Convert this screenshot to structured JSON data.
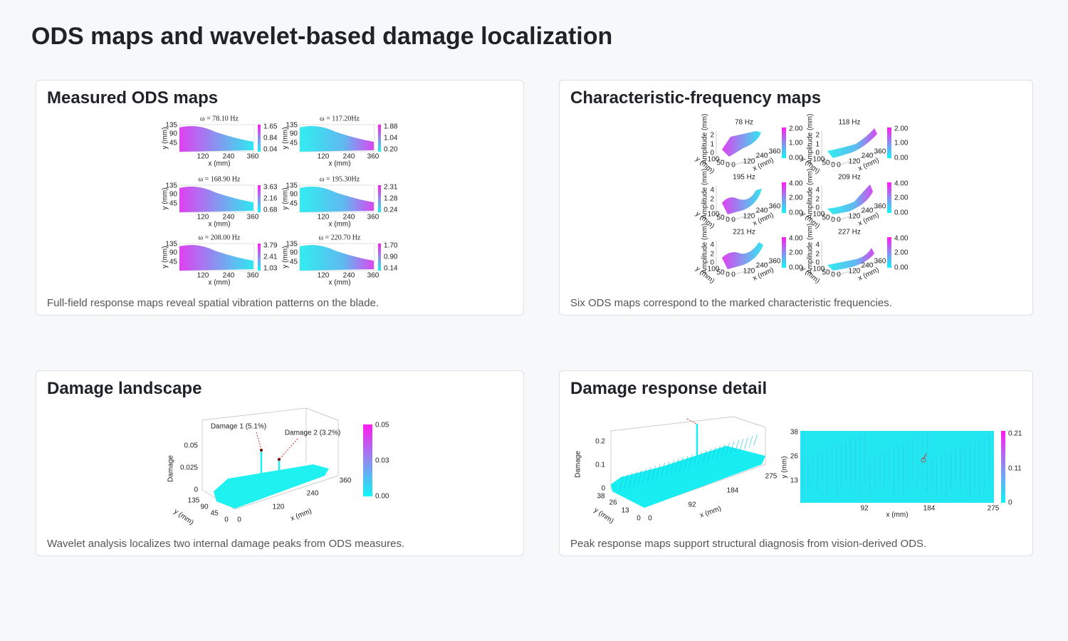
{
  "title": "ODS maps and wavelet-based damage localization",
  "panels": [
    {
      "title": "Measured ODS maps",
      "caption": "Full-field response maps reveal spatial vibration patterns on the blade.",
      "figure": {
        "x_label": "x (mm)",
        "y_label": "y (mm)",
        "x_ticks": [
          "120",
          "240",
          "360"
        ],
        "y_ticks": [
          "135",
          "90",
          "45"
        ],
        "plots": [
          {
            "title": "ω = 78.10 Hz",
            "colorbar": [
              "1.65",
              "0.84",
              "0.04"
            ]
          },
          {
            "title": "ω = 117.20Hz",
            "colorbar": [
              "1.88",
              "1.04",
              "0.20"
            ]
          },
          {
            "title": "ω = 168.90 Hz",
            "colorbar": [
              "3.63",
              "2.16",
              "0.68"
            ]
          },
          {
            "title": "ω = 195.30Hz",
            "colorbar": [
              "2.31",
              "1.28",
              "0.24"
            ]
          },
          {
            "title": "ω = 208.00 Hz",
            "colorbar": [
              "3.79",
              "2.41",
              "1.03"
            ]
          },
          {
            "title": "ω = 220.70 Hz",
            "colorbar": [
              "1.70",
              "0.90",
              "0.14"
            ]
          }
        ]
      }
    },
    {
      "title": "Characteristic-frequency maps",
      "caption": "Six ODS maps correspond to the marked characteristic frequencies.",
      "figure": {
        "z_label": "Amplitude (mm)",
        "x_label": "x (mm)",
        "y_label": "y (mm)",
        "x_ticks": [
          "0",
          "120",
          "240",
          "360"
        ],
        "y_ticks": [
          "100",
          "50",
          "0"
        ],
        "plots": [
          {
            "title": "78 Hz",
            "z_ticks": [
              "2",
              "1",
              "0"
            ],
            "colorbar": [
              "2.00",
              "1.00",
              "0.00"
            ]
          },
          {
            "title": "118 Hz",
            "z_ticks": [
              "2",
              "1",
              "0"
            ],
            "colorbar": [
              "2.00",
              "1.00",
              "0.00"
            ]
          },
          {
            "title": "195 Hz",
            "z_ticks": [
              "4",
              "2",
              "0"
            ],
            "colorbar": [
              "4.00",
              "2.00",
              "0.00"
            ]
          },
          {
            "title": "209 Hz",
            "z_ticks": [
              "4",
              "2",
              "0"
            ],
            "colorbar": [
              "4.00",
              "2.00",
              "0.00"
            ]
          },
          {
            "title": "221 Hz",
            "z_ticks": [
              "4",
              "2",
              "0"
            ],
            "colorbar": [
              "4.00",
              "2.00",
              "0.00"
            ]
          },
          {
            "title": "227 Hz",
            "z_ticks": [
              "4",
              "2",
              "0"
            ],
            "colorbar": [
              "4.00",
              "2.00",
              "0.00"
            ]
          }
        ]
      }
    },
    {
      "title": "Damage landscape",
      "caption": "Wavelet analysis localizes two internal damage peaks from ODS measures.",
      "figure": {
        "annotations": [
          "Damage 1 (5.1%)",
          "Damage 2 (3.2%)"
        ],
        "z_label": "Damage",
        "z_ticks": [
          "0.05",
          "0.025",
          "0"
        ],
        "y_label": "y (mm)",
        "y_ticks": [
          "135",
          "90",
          "45",
          "0"
        ],
        "x_label": "x (mm)",
        "x_ticks": [
          "0",
          "120",
          "240",
          "360"
        ],
        "colorbar": [
          "0.05",
          "0.03",
          "0.00"
        ]
      }
    },
    {
      "title": "Damage response detail",
      "caption": "Peak response maps support structural diagnosis from vision-derived ODS.",
      "figure": {
        "surface": {
          "z_label": "Damage",
          "z_ticks": [
            "0.2",
            "0.1",
            "0"
          ],
          "y_label": "y (mm)",
          "y_ticks": [
            "38",
            "26",
            "13",
            "0"
          ],
          "x_label": "x (mm)",
          "x_ticks": [
            "0",
            "92",
            "184",
            "275"
          ]
        },
        "map": {
          "y_label": "y (mm)",
          "y_ticks": [
            "38",
            "26",
            "13"
          ],
          "x_label": "x (mm)",
          "x_ticks": [
            "92",
            "184",
            "275"
          ],
          "colorbar": [
            "0.21",
            "0.11",
            "0"
          ]
        }
      }
    }
  ]
}
